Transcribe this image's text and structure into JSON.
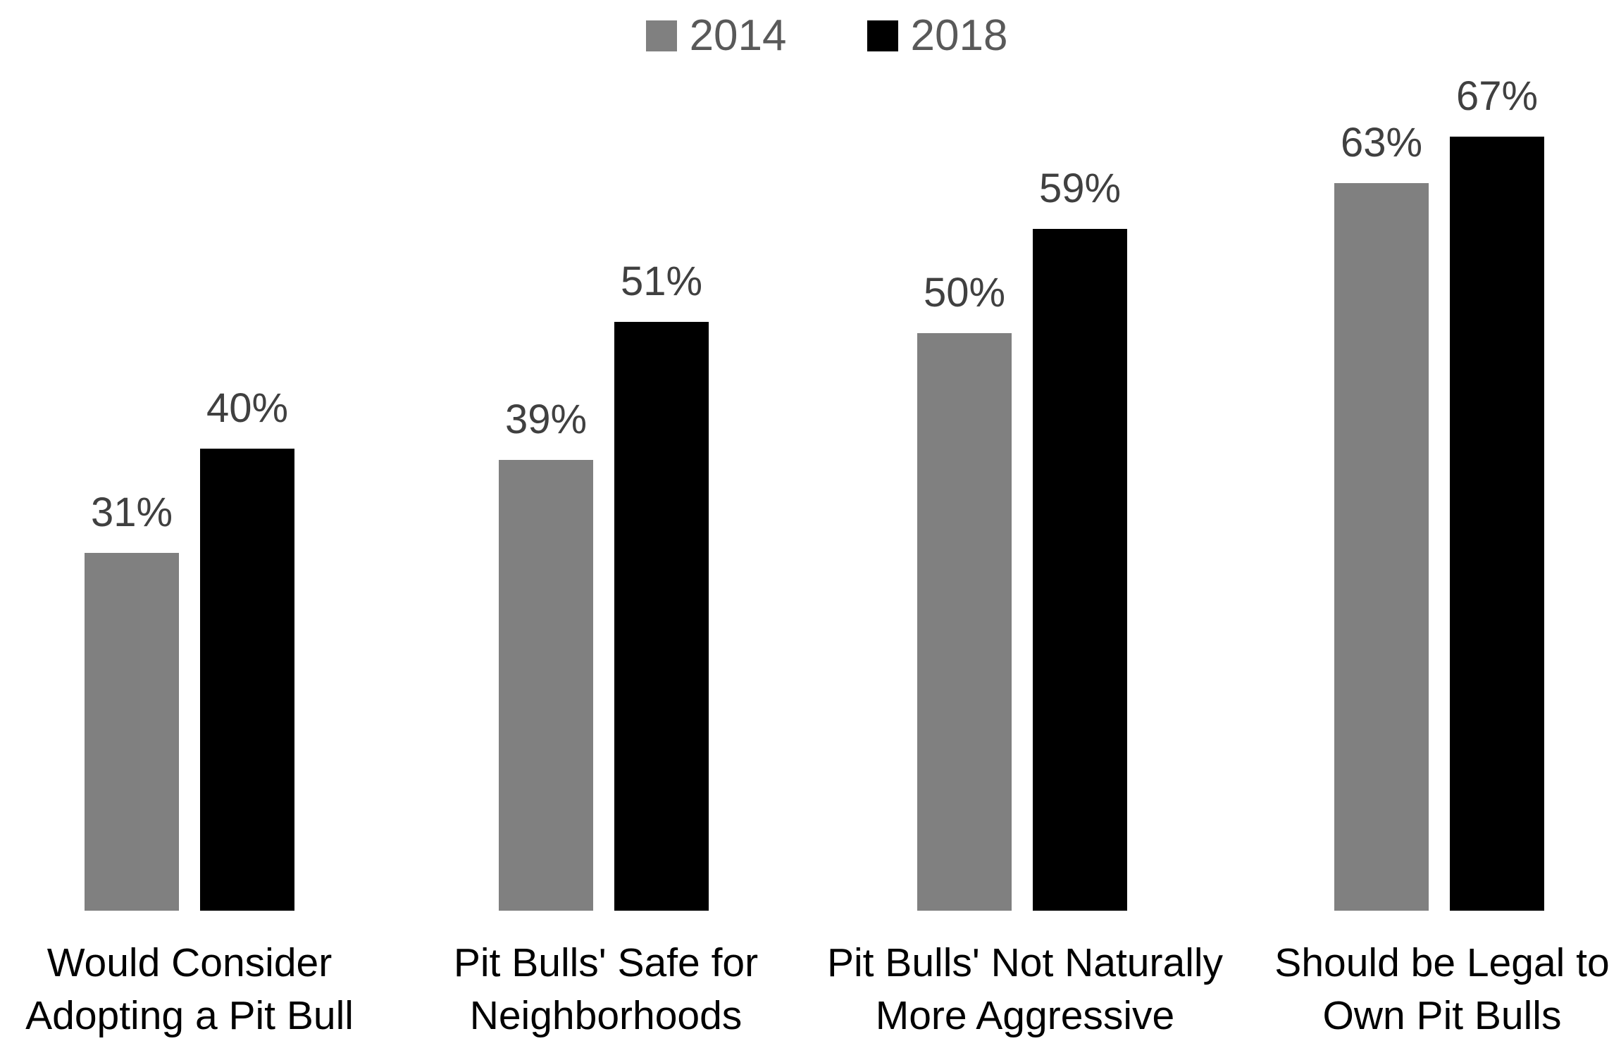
{
  "chart_data": {
    "type": "bar",
    "title": "",
    "categories": [
      "Would Consider Adopting a Pit Bull",
      "Pit Bulls' Safe for Neighborhoods",
      "Pit Bulls' Not Naturally More Aggressive",
      "Should be Legal to Own Pit Bulls"
    ],
    "categories_lines": [
      [
        "Would Consider",
        "Adopting a Pit Bull"
      ],
      [
        "Pit Bulls' Safe for",
        "Neighborhoods"
      ],
      [
        "Pit Bulls' Not Naturally",
        "More Aggressive"
      ],
      [
        "Should be Legal to",
        "Own Pit Bulls"
      ]
    ],
    "series": [
      {
        "name": "2014",
        "color": "#808080",
        "values": [
          31,
          39,
          50,
          63
        ]
      },
      {
        "name": "2018",
        "color": "#000000",
        "values": [
          40,
          51,
          59,
          67
        ]
      }
    ],
    "value_labels": [
      [
        "31%",
        "39%",
        "50%",
        "63%"
      ],
      [
        "40%",
        "51%",
        "59%",
        "67%"
      ]
    ],
    "ylim": [
      0,
      100
    ],
    "grid": false,
    "axes_visible": false,
    "legend_position": "top-center",
    "colors": {
      "value_label": "#404040",
      "legend_text": "#595959",
      "category_label": "#000000",
      "background": "#ffffff"
    }
  }
}
